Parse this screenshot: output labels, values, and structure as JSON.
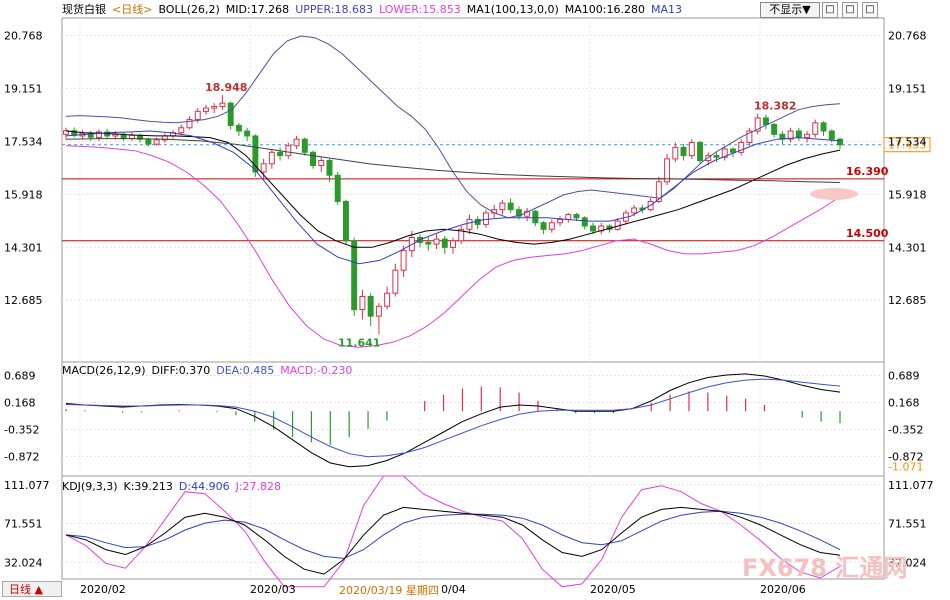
{
  "header_main": {
    "title": "现货白银",
    "period": "<日线>",
    "boll": "BOLL(26,2)",
    "mid": "MID:17.268",
    "upper": "UPPER:18.683",
    "lower": "LOWER:15.853",
    "ma1": "MA1(100,13,0,0)",
    "ma100": "MA100:16.280",
    "ma13": "MA13"
  },
  "header_macd": {
    "label": "MACD(26,12,9)",
    "diff": "DIFF:0.370",
    "dea": "DEA:0.485",
    "macd": "MACD:-0.230"
  },
  "header_kdj": {
    "label": "KDJ(9,3,3)",
    "k": "K:39.213",
    "d": "D:44.906",
    "j": "J:27.828"
  },
  "toolbar": {
    "hide_label": "不显示▼",
    "btn1": "□",
    "btn2": "□",
    "btn3": "□"
  },
  "bottom": {
    "tab_label": "日线 ▲",
    "date_hint": "2020/03/19 星期四",
    "watermark": "FX678 汇通网"
  },
  "colors": {
    "up": "#e0304a",
    "down": "#2a9a2a",
    "upper_band": "#5050a0",
    "lower_band": "#e040e0",
    "mid_band": "#000000",
    "ma100": "#404040",
    "ma13": "#3040c0",
    "hline": "#cc0000",
    "current": "#ff8c00",
    "dea": "#4050d0",
    "kdj_j": "#e040e0",
    "kdj_d": "#3040c0"
  },
  "chart_data": [
    {
      "type": "candlestick",
      "y_ticks": [
        "20.768",
        "19.151",
        "17.534",
        "15.918",
        "14.301",
        "12.685"
      ],
      "ylim": [
        10.8,
        21.3
      ],
      "x_labels": [
        "2020/02",
        "2020/03",
        "2020/04",
        "2020/05",
        "2020/06"
      ],
      "current_price": "17.433",
      "annotations": [
        "18.948",
        "11.641",
        "18.382"
      ],
      "hlines": [
        {
          "value": 16.39,
          "label": "16.390"
        },
        {
          "value": 14.5,
          "label": "14.500"
        }
      ],
      "candles": [
        [
          17.75,
          17.86,
          17.6,
          17.95
        ],
        [
          17.86,
          17.72,
          17.65,
          17.96
        ],
        [
          17.7,
          17.78,
          17.6,
          17.88
        ],
        [
          17.78,
          17.66,
          17.55,
          17.85
        ],
        [
          17.65,
          17.82,
          17.55,
          17.9
        ],
        [
          17.82,
          17.7,
          17.6,
          17.92
        ],
        [
          17.7,
          17.75,
          17.6,
          17.85
        ],
        [
          17.75,
          17.62,
          17.55,
          17.8
        ],
        [
          17.62,
          17.72,
          17.55,
          17.8
        ],
        [
          17.72,
          17.6,
          17.5,
          17.78
        ],
        [
          17.6,
          17.45,
          17.38,
          17.65
        ],
        [
          17.45,
          17.58,
          17.4,
          17.65
        ],
        [
          17.58,
          17.7,
          17.5,
          17.78
        ],
        [
          17.7,
          17.8,
          17.62,
          17.88
        ],
        [
          17.8,
          17.95,
          17.72,
          18.05
        ],
        [
          17.95,
          18.2,
          17.9,
          18.3
        ],
        [
          18.2,
          18.45,
          18.1,
          18.55
        ],
        [
          18.45,
          18.55,
          18.35,
          18.65
        ],
        [
          18.55,
          18.6,
          18.4,
          18.7
        ],
        [
          18.6,
          18.7,
          18.5,
          18.948
        ],
        [
          18.7,
          18.02,
          17.9,
          18.75
        ],
        [
          18.02,
          17.85,
          17.7,
          18.1
        ],
        [
          17.85,
          17.7,
          17.55,
          17.95
        ],
        [
          17.7,
          16.6,
          16.45,
          17.75
        ],
        [
          16.6,
          16.85,
          16.4,
          17.0
        ],
        [
          16.85,
          17.2,
          16.7,
          17.3
        ],
        [
          17.2,
          17.1,
          16.95,
          17.35
        ],
        [
          17.1,
          17.4,
          17.0,
          17.5
        ],
        [
          17.4,
          17.6,
          17.3,
          17.7
        ],
        [
          17.6,
          17.2,
          17.1,
          17.65
        ],
        [
          17.2,
          16.8,
          16.7,
          17.25
        ],
        [
          16.8,
          16.95,
          16.6,
          17.05
        ],
        [
          16.95,
          16.5,
          16.3,
          17.0
        ],
        [
          16.5,
          15.7,
          15.6,
          16.6
        ],
        [
          15.7,
          14.5,
          14.4,
          15.75
        ],
        [
          14.5,
          12.4,
          12.2,
          14.6
        ],
        [
          12.4,
          12.8,
          12.1,
          13.0
        ],
        [
          12.8,
          12.2,
          11.9,
          12.9
        ],
        [
          12.2,
          12.5,
          11.641,
          12.6
        ],
        [
          12.5,
          12.9,
          12.4,
          13.1
        ],
        [
          12.9,
          13.6,
          12.8,
          13.8
        ],
        [
          13.6,
          14.2,
          13.4,
          14.35
        ],
        [
          14.2,
          14.6,
          14.0,
          14.8
        ],
        [
          14.6,
          14.45,
          14.3,
          14.7
        ],
        [
          14.45,
          14.4,
          14.2,
          14.6
        ],
        [
          14.4,
          14.55,
          14.25,
          14.7
        ],
        [
          14.55,
          14.3,
          14.1,
          14.65
        ],
        [
          14.3,
          14.5,
          14.1,
          14.6
        ],
        [
          14.5,
          14.85,
          14.4,
          14.95
        ],
        [
          14.85,
          15.15,
          14.7,
          15.3
        ],
        [
          15.15,
          15.0,
          14.85,
          15.25
        ],
        [
          15.0,
          15.35,
          14.9,
          15.45
        ],
        [
          15.35,
          15.45,
          15.2,
          15.6
        ],
        [
          15.45,
          15.65,
          15.3,
          15.75
        ],
        [
          15.65,
          15.45,
          15.35,
          15.8
        ],
        [
          15.45,
          15.25,
          15.15,
          15.55
        ],
        [
          15.25,
          15.4,
          15.1,
          15.5
        ],
        [
          15.4,
          15.05,
          14.95,
          15.45
        ],
        [
          15.05,
          14.85,
          14.7,
          15.1
        ],
        [
          14.85,
          15.05,
          14.75,
          15.15
        ],
        [
          15.05,
          15.15,
          14.95,
          15.25
        ],
        [
          15.15,
          15.3,
          15.05,
          15.35
        ],
        [
          15.3,
          15.2,
          15.1,
          15.35
        ],
        [
          15.2,
          14.95,
          14.85,
          15.25
        ],
        [
          14.95,
          14.8,
          14.7,
          15.05
        ],
        [
          14.8,
          14.95,
          14.7,
          15.05
        ],
        [
          14.95,
          14.85,
          14.75,
          15.0
        ],
        [
          14.85,
          15.1,
          14.8,
          15.2
        ],
        [
          15.1,
          15.35,
          15.0,
          15.45
        ],
        [
          15.35,
          15.5,
          15.25,
          15.6
        ],
        [
          15.5,
          15.45,
          15.35,
          15.6
        ],
        [
          15.45,
          15.7,
          15.4,
          15.8
        ],
        [
          15.7,
          16.3,
          15.65,
          16.45
        ],
        [
          16.3,
          17.0,
          16.2,
          17.15
        ],
        [
          17.0,
          17.35,
          16.9,
          17.5
        ],
        [
          17.35,
          17.1,
          16.95,
          17.45
        ],
        [
          17.1,
          17.5,
          17.0,
          17.6
        ],
        [
          17.5,
          16.95,
          16.85,
          17.55
        ],
        [
          16.95,
          17.1,
          16.8,
          17.2
        ],
        [
          17.1,
          17.05,
          16.9,
          17.2
        ],
        [
          17.05,
          17.3,
          16.95,
          17.4
        ],
        [
          17.3,
          17.2,
          17.05,
          17.35
        ],
        [
          17.2,
          17.5,
          17.1,
          17.6
        ],
        [
          17.5,
          17.85,
          17.4,
          17.95
        ],
        [
          17.85,
          18.25,
          17.75,
          18.382
        ],
        [
          18.25,
          18.05,
          17.9,
          18.35
        ],
        [
          18.05,
          17.75,
          17.65,
          18.1
        ],
        [
          17.75,
          17.6,
          17.45,
          17.85
        ],
        [
          17.6,
          17.85,
          17.5,
          17.95
        ],
        [
          17.85,
          17.65,
          17.55,
          17.95
        ],
        [
          17.65,
          17.75,
          17.5,
          17.85
        ],
        [
          17.75,
          18.1,
          17.65,
          18.2
        ],
        [
          18.1,
          17.85,
          17.7,
          18.15
        ],
        [
          17.85,
          17.6,
          17.5,
          17.9
        ],
        [
          17.6,
          17.433,
          17.3,
          17.65
        ]
      ],
      "series": [
        {
          "key": "upper",
          "values": [
            18.3,
            18.32,
            18.3,
            18.28,
            18.25,
            18.2,
            18.15,
            18.12,
            18.1,
            18.15,
            18.2,
            18.3,
            18.5,
            19.0,
            19.6,
            20.2,
            20.6,
            20.75,
            20.7,
            20.5,
            20.2,
            19.8,
            19.4,
            19.0,
            18.6,
            18.3,
            17.9,
            17.3,
            16.6,
            16.0,
            15.6,
            15.35,
            15.2,
            15.3,
            15.5,
            15.7,
            15.9,
            16.0,
            16.05,
            16.0,
            15.95,
            15.9,
            15.85,
            15.8,
            16.1,
            16.5,
            16.9,
            17.2,
            17.45,
            17.7,
            17.9,
            18.1,
            18.3,
            18.5,
            18.6,
            18.65,
            18.683
          ]
        },
        {
          "key": "lower",
          "values": [
            17.4,
            17.38,
            17.35,
            17.3,
            17.25,
            17.1,
            16.9,
            16.6,
            16.2,
            15.7,
            15.0,
            14.2,
            13.3,
            12.5,
            11.9,
            11.5,
            11.3,
            11.25,
            11.3,
            11.4,
            11.6,
            11.9,
            12.3,
            12.8,
            13.3,
            13.7,
            13.9,
            14.0,
            14.05,
            14.1,
            14.2,
            14.35,
            14.5,
            14.55,
            14.4,
            14.2,
            14.1,
            14.1,
            14.15,
            14.2,
            14.35,
            14.6,
            14.9,
            15.2,
            15.5,
            15.853
          ]
        },
        {
          "key": "mid",
          "values": [
            17.85,
            17.8,
            17.78,
            17.75,
            17.72,
            17.7,
            17.7,
            17.68,
            17.65,
            17.5,
            17.1,
            16.5,
            15.9,
            15.3,
            14.8,
            14.5,
            14.3,
            14.3,
            14.45,
            14.65,
            14.8,
            14.85,
            14.8,
            14.7,
            14.55,
            14.45,
            14.4,
            14.45,
            14.55,
            14.7,
            14.85,
            15.0,
            15.15,
            15.3,
            15.45,
            15.65,
            15.85,
            16.05,
            16.3,
            16.55,
            16.8,
            17.0,
            17.15,
            17.268
          ]
        },
        {
          "key": "ma100",
          "values": [
            17.6,
            17.62,
            17.62,
            17.6,
            17.55,
            17.45,
            17.3,
            17.15,
            17.0,
            16.85,
            16.75,
            16.65,
            16.58,
            16.52,
            16.48,
            16.45,
            16.42,
            16.4,
            16.39,
            16.37,
            16.35,
            16.33,
            16.3,
            16.28
          ]
        },
        {
          "key": "ma13",
          "values": [
            17.7,
            17.75,
            17.8,
            17.82,
            17.85,
            17.8,
            17.7,
            17.5,
            17.2,
            16.7,
            15.9,
            15.1,
            14.4,
            14.0,
            13.8,
            13.9,
            14.2,
            14.55,
            14.8,
            15.0,
            15.15,
            15.2,
            15.2,
            15.2,
            15.15,
            15.1,
            15.1,
            15.25,
            15.6,
            16.1,
            16.6,
            16.95,
            17.2,
            17.45,
            17.6,
            17.65,
            17.6,
            17.55
          ]
        }
      ]
    },
    {
      "type": "macd",
      "y_ticks": [
        "0.689",
        "0.168",
        "-0.352",
        "-0.872"
      ],
      "ylim": [
        -1.25,
        0.95
      ],
      "min_marker": "-1.071",
      "dif": [
        0.15,
        0.12,
        0.1,
        0.08,
        0.1,
        0.12,
        0.13,
        0.12,
        0.1,
        0.05,
        -0.1,
        -0.3,
        -0.55,
        -0.8,
        -1.0,
        -1.071,
        -1.05,
        -0.95,
        -0.8,
        -0.6,
        -0.4,
        -0.2,
        -0.05,
        0.08,
        0.12,
        0.1,
        0.05,
        0.0,
        0.0,
        0.0,
        0.05,
        0.2,
        0.4,
        0.55,
        0.65,
        0.7,
        0.72,
        0.68,
        0.6,
        0.5,
        0.42,
        0.37
      ],
      "dea": [
        0.13,
        0.12,
        0.11,
        0.1,
        0.1,
        0.11,
        0.12,
        0.12,
        0.11,
        0.08,
        0.0,
        -0.12,
        -0.3,
        -0.5,
        -0.68,
        -0.82,
        -0.88,
        -0.86,
        -0.8,
        -0.7,
        -0.56,
        -0.42,
        -0.28,
        -0.16,
        -0.06,
        0.0,
        0.02,
        0.02,
        0.02,
        0.02,
        0.05,
        0.12,
        0.24,
        0.36,
        0.47,
        0.55,
        0.6,
        0.62,
        0.6,
        0.56,
        0.52,
        0.485
      ],
      "macd": [
        0.04,
        0.02,
        0.0,
        -0.03,
        -0.02,
        0.0,
        0.02,
        0.0,
        -0.02,
        -0.08,
        -0.2,
        -0.36,
        -0.5,
        -0.6,
        -0.65,
        -0.5,
        -0.34,
        -0.18,
        0.0,
        0.2,
        0.32,
        0.44,
        0.48,
        0.46,
        0.36,
        0.2,
        0.06,
        -0.04,
        -0.04,
        -0.04,
        0.0,
        0.16,
        0.32,
        0.38,
        0.36,
        0.3,
        0.24,
        0.12,
        0.0,
        -0.12,
        -0.2,
        -0.23
      ]
    },
    {
      "type": "kdj",
      "y_ticks": [
        "111.077",
        "71.551",
        "32.024"
      ],
      "ylim": [
        15,
        120
      ],
      "k": [
        60,
        55,
        45,
        40,
        48,
        62,
        78,
        82,
        78,
        70,
        55,
        38,
        25,
        20,
        35,
        60,
        80,
        88,
        86,
        84,
        82,
        80,
        78,
        70,
        55,
        42,
        38,
        45,
        62,
        78,
        86,
        88,
        86,
        84,
        78,
        70,
        60,
        50,
        42,
        39.213
      ],
      "d": [
        60,
        58,
        52,
        47,
        48,
        55,
        65,
        72,
        75,
        73,
        66,
        55,
        45,
        38,
        36,
        45,
        60,
        72,
        78,
        80,
        81,
        81,
        80,
        77,
        70,
        60,
        52,
        50,
        54,
        64,
        74,
        80,
        83,
        84,
        82,
        78,
        72,
        64,
        55,
        44.906
      ],
      "j": [
        60,
        49,
        31,
        26,
        48,
        76,
        104,
        102,
        84,
        64,
        33,
        4,
        -15,
        -16,
        33,
        90,
        120,
        120,
        102,
        92,
        84,
        78,
        74,
        56,
        25,
        6,
        10,
        35,
        78,
        106,
        110,
        104,
        92,
        84,
        70,
        54,
        36,
        22,
        16,
        27.828
      ]
    }
  ]
}
